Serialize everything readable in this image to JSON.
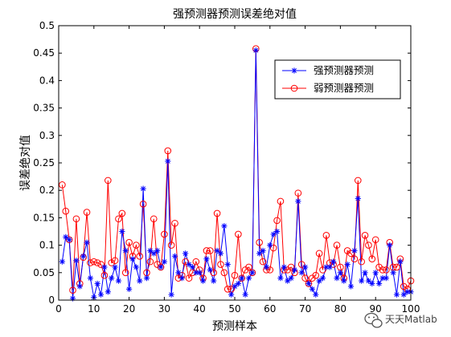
{
  "chart_data": {
    "type": "line",
    "title": "强预测器预测误差绝对值",
    "xlabel": "预测样本",
    "ylabel": "误差绝对值",
    "xlim": [
      0,
      100
    ],
    "ylim": [
      0,
      0.5
    ],
    "xticks": [
      "0",
      "10",
      "20",
      "30",
      "40",
      "50",
      "60",
      "70",
      "80",
      "90",
      "100"
    ],
    "yticks": [
      "0",
      "0.05",
      "0.1",
      "0.15",
      "0.2",
      "0.25",
      "0.3",
      "0.35",
      "0.4",
      "0.45",
      "0.5"
    ],
    "grid": false,
    "legend_position": "top-right",
    "x": [
      1,
      2,
      3,
      4,
      5,
      6,
      7,
      8,
      9,
      10,
      11,
      12,
      13,
      14,
      15,
      16,
      17,
      18,
      19,
      20,
      21,
      22,
      23,
      24,
      25,
      26,
      27,
      28,
      29,
      30,
      31,
      32,
      33,
      34,
      35,
      36,
      37,
      38,
      39,
      40,
      41,
      42,
      43,
      44,
      45,
      46,
      47,
      48,
      49,
      50,
      51,
      52,
      53,
      54,
      55,
      56,
      57,
      58,
      59,
      60,
      61,
      62,
      63,
      64,
      65,
      66,
      67,
      68,
      69,
      70,
      71,
      72,
      73,
      74,
      75,
      76,
      77,
      78,
      79,
      80,
      81,
      82,
      83,
      84,
      85,
      86,
      87,
      88,
      89,
      90,
      91,
      92,
      93,
      94,
      95,
      96,
      97,
      98,
      99,
      100
    ],
    "series": [
      {
        "name": "强预测器预测",
        "color": "#0000ff",
        "marker": "star",
        "values": [
          0.07,
          0.115,
          0.11,
          0.003,
          0.072,
          0.025,
          0.08,
          0.105,
          0.04,
          0.005,
          0.03,
          0.01,
          0.06,
          0.015,
          0.04,
          0.06,
          0.035,
          0.125,
          0.09,
          0.02,
          0.075,
          0.06,
          0.035,
          0.203,
          0.04,
          0.09,
          0.085,
          0.09,
          0.06,
          0.07,
          0.253,
          0.01,
          0.08,
          0.05,
          0.04,
          0.085,
          0.065,
          0.06,
          0.05,
          0.05,
          0.035,
          0.075,
          0.055,
          0.035,
          0.09,
          0.085,
          0.135,
          0.065,
          0.01,
          0.025,
          0.03,
          0.04,
          0.01,
          0.04,
          0.05,
          0.455,
          0.085,
          0.09,
          0.06,
          0.1,
          0.12,
          0.125,
          0.04,
          0.06,
          0.035,
          0.04,
          0.055,
          0.18,
          0.05,
          0.06,
          0.03,
          0.02,
          0.01,
          0.035,
          0.04,
          0.06,
          0.06,
          0.07,
          0.04,
          0.05,
          0.035,
          0.065,
          0.025,
          0.09,
          0.185,
          0.035,
          0.05,
          0.035,
          0.03,
          0.05,
          0.03,
          0.04,
          0.04,
          0.1,
          0.05,
          0.01,
          0.07,
          0.01,
          0.015,
          0.015
        ]
      },
      {
        "name": "弱预测器预测",
        "color": "#ff0000",
        "marker": "circle",
        "values": [
          0.21,
          0.162,
          0.11,
          0.018,
          0.148,
          0.03,
          0.078,
          0.16,
          0.068,
          0.07,
          0.068,
          0.065,
          0.045,
          0.218,
          0.068,
          0.072,
          0.148,
          0.158,
          0.05,
          0.105,
          0.08,
          0.1,
          0.08,
          0.175,
          0.05,
          0.07,
          0.148,
          0.065,
          0.06,
          0.12,
          0.272,
          0.1,
          0.14,
          0.04,
          0.045,
          0.07,
          0.04,
          0.05,
          0.07,
          0.055,
          0.04,
          0.09,
          0.09,
          0.05,
          0.158,
          0.065,
          0.05,
          0.02,
          0.02,
          0.045,
          0.12,
          0.04,
          0.055,
          0.06,
          0.05,
          0.458,
          0.105,
          0.07,
          0.055,
          0.055,
          0.095,
          0.145,
          0.18,
          0.055,
          0.055,
          0.06,
          0.05,
          0.195,
          0.065,
          0.04,
          0.03,
          0.04,
          0.045,
          0.085,
          0.055,
          0.118,
          0.068,
          0.065,
          0.1,
          0.06,
          0.04,
          0.09,
          0.085,
          0.075,
          0.218,
          0.07,
          0.118,
          0.1,
          0.075,
          0.11,
          0.06,
          0.055,
          0.055,
          0.105,
          0.06,
          0.06,
          0.075,
          0.025,
          0.02,
          0.035
        ]
      }
    ]
  },
  "watermark": {
    "text": "天天Matlab",
    "icon": "wechat-bubble-icon"
  }
}
